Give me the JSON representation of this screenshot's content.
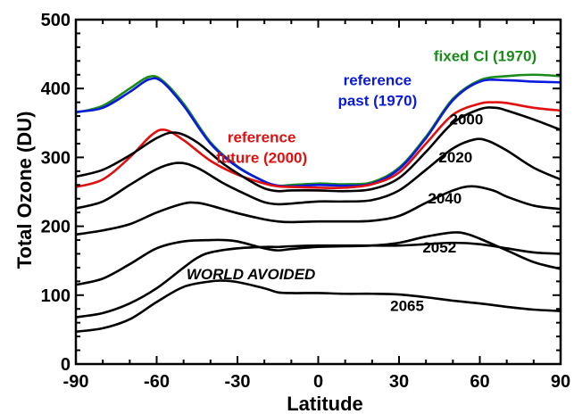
{
  "chart_data": {
    "type": "line",
    "xlabel": "Latitude",
    "ylabel": "Total Ozone (DU)",
    "xlim": [
      -90,
      90
    ],
    "ylim": [
      0,
      500
    ],
    "x_ticks": [
      -90,
      -60,
      -30,
      0,
      30,
      60,
      90
    ],
    "y_ticks": [
      0,
      100,
      200,
      300,
      400,
      500
    ],
    "grid": false,
    "series": [
      {
        "name": "fixed Cl (1970)",
        "color": "#1a8a1a",
        "x": [
          -90,
          -80,
          -70,
          -63,
          -58,
          -50,
          -40,
          -30,
          -20,
          -15,
          -10,
          0,
          10,
          20,
          30,
          40,
          50,
          60,
          70,
          80,
          90
        ],
        "y": [
          365,
          375,
          400,
          417,
          412,
          378,
          322,
          287,
          265,
          259,
          260,
          262,
          261,
          264,
          285,
          330,
          385,
          412,
          418,
          420,
          418
        ]
      },
      {
        "name": "reference past (1970)",
        "color": "#0a1adc",
        "x": [
          -90,
          -80,
          -70,
          -63,
          -58,
          -50,
          -40,
          -30,
          -20,
          -15,
          -10,
          0,
          10,
          20,
          30,
          40,
          50,
          60,
          70,
          80,
          90
        ],
        "y": [
          366,
          372,
          395,
          413,
          410,
          375,
          320,
          286,
          265,
          259,
          258,
          260,
          259,
          262,
          283,
          328,
          383,
          410,
          412,
          410,
          409
        ]
      },
      {
        "name": "reference future (2000)",
        "color": "#e01010",
        "x": [
          -90,
          -80,
          -70,
          -62,
          -57,
          -50,
          -40,
          -30,
          -20,
          -15,
          -10,
          0,
          10,
          20,
          30,
          40,
          50,
          60,
          65,
          70,
          80,
          90
        ],
        "y": [
          257,
          268,
          300,
          332,
          340,
          325,
          295,
          275,
          262,
          258,
          257,
          256,
          256,
          261,
          278,
          320,
          362,
          378,
          380,
          379,
          372,
          368
        ]
      },
      {
        "name": "2000",
        "color": "#000000",
        "x": [
          -90,
          -80,
          -70,
          -60,
          -53,
          -45,
          -35,
          -25,
          -20,
          -15,
          -10,
          0,
          10,
          20,
          30,
          40,
          50,
          60,
          66,
          70,
          80,
          90
        ],
        "y": [
          272,
          282,
          303,
          328,
          336,
          322,
          290,
          265,
          255,
          251,
          252,
          252,
          251,
          254,
          270,
          308,
          350,
          370,
          372,
          368,
          355,
          340
        ]
      },
      {
        "name": "2020",
        "color": "#000000",
        "x": [
          -90,
          -80,
          -70,
          -60,
          -52,
          -45,
          -35,
          -25,
          -20,
          -15,
          -10,
          0,
          10,
          20,
          30,
          40,
          50,
          58,
          63,
          70,
          80,
          90
        ],
        "y": [
          226,
          236,
          260,
          283,
          292,
          285,
          262,
          243,
          235,
          232,
          233,
          236,
          236,
          238,
          252,
          282,
          313,
          326,
          324,
          310,
          285,
          268
        ]
      },
      {
        "name": "2040",
        "color": "#000000",
        "x": [
          -90,
          -80,
          -70,
          -60,
          -50,
          -45,
          -40,
          -30,
          -20,
          -15,
          -10,
          0,
          10,
          20,
          30,
          40,
          50,
          57,
          65,
          70,
          80,
          90
        ],
        "y": [
          188,
          194,
          203,
          220,
          233,
          234,
          230,
          219,
          210,
          207,
          206,
          207,
          207,
          208,
          215,
          234,
          252,
          258,
          252,
          243,
          230,
          225
        ]
      },
      {
        "name": "2052",
        "color": "#000000",
        "x": [
          -90,
          -80,
          -70,
          -60,
          -50,
          -40,
          -35,
          -30,
          -20,
          -15,
          -10,
          0,
          10,
          20,
          30,
          40,
          50,
          55,
          60,
          70,
          80,
          90
        ],
        "y": [
          115,
          124,
          145,
          168,
          178,
          180,
          180,
          178,
          168,
          165,
          167,
          170,
          171,
          172,
          176,
          185,
          191,
          189,
          182,
          165,
          148,
          138
        ]
      },
      {
        "name": "WORLD AVOIDED",
        "color": "#000000",
        "x": [
          -90,
          -80,
          -70,
          -60,
          -50,
          -45,
          -40,
          -30,
          -20,
          -15,
          -10,
          0,
          10,
          20,
          30,
          40,
          50,
          60,
          70,
          80,
          90
        ],
        "y": [
          68,
          74,
          88,
          110,
          140,
          154,
          162,
          168,
          170,
          170,
          171,
          172,
          172,
          172,
          172,
          174,
          176,
          174,
          168,
          162,
          160
        ]
      },
      {
        "name": "2065",
        "color": "#000000",
        "x": [
          -90,
          -80,
          -70,
          -60,
          -50,
          -40,
          -35,
          -30,
          -20,
          -15,
          -10,
          0,
          10,
          20,
          30,
          40,
          50,
          60,
          70,
          80,
          90
        ],
        "y": [
          47,
          52,
          65,
          90,
          112,
          120,
          121,
          119,
          110,
          104,
          103,
          103,
          102,
          102,
          101,
          97,
          92,
          88,
          83,
          79,
          77
        ]
      }
    ],
    "annotations": [
      {
        "text": "fixed Cl (1970)",
        "color": "#1a8a1a",
        "x": 62,
        "y": 440
      },
      {
        "text": "reference",
        "color": "#0a1adc",
        "x": 22,
        "y": 405
      },
      {
        "text": "past (1970)",
        "color": "#0a1adc",
        "x": 22,
        "y": 375
      },
      {
        "text": "reference",
        "color": "#e01010",
        "x": -21,
        "y": 322
      },
      {
        "text": "future (2000)",
        "color": "#e01010",
        "x": -21,
        "y": 292
      },
      {
        "text": "2000",
        "color": "#000000",
        "x": 55,
        "y": 348
      },
      {
        "text": "2020",
        "color": "#000000",
        "x": 51,
        "y": 293
      },
      {
        "text": "2040",
        "color": "#000000",
        "x": 47,
        "y": 233
      },
      {
        "text": "2052",
        "color": "#000000",
        "x": 45,
        "y": 162
      },
      {
        "text": "WORLD AVOIDED",
        "color": "#000000",
        "x": -25,
        "y": 123
      },
      {
        "text": "2065",
        "color": "#000000",
        "x": 33,
        "y": 77
      }
    ]
  }
}
